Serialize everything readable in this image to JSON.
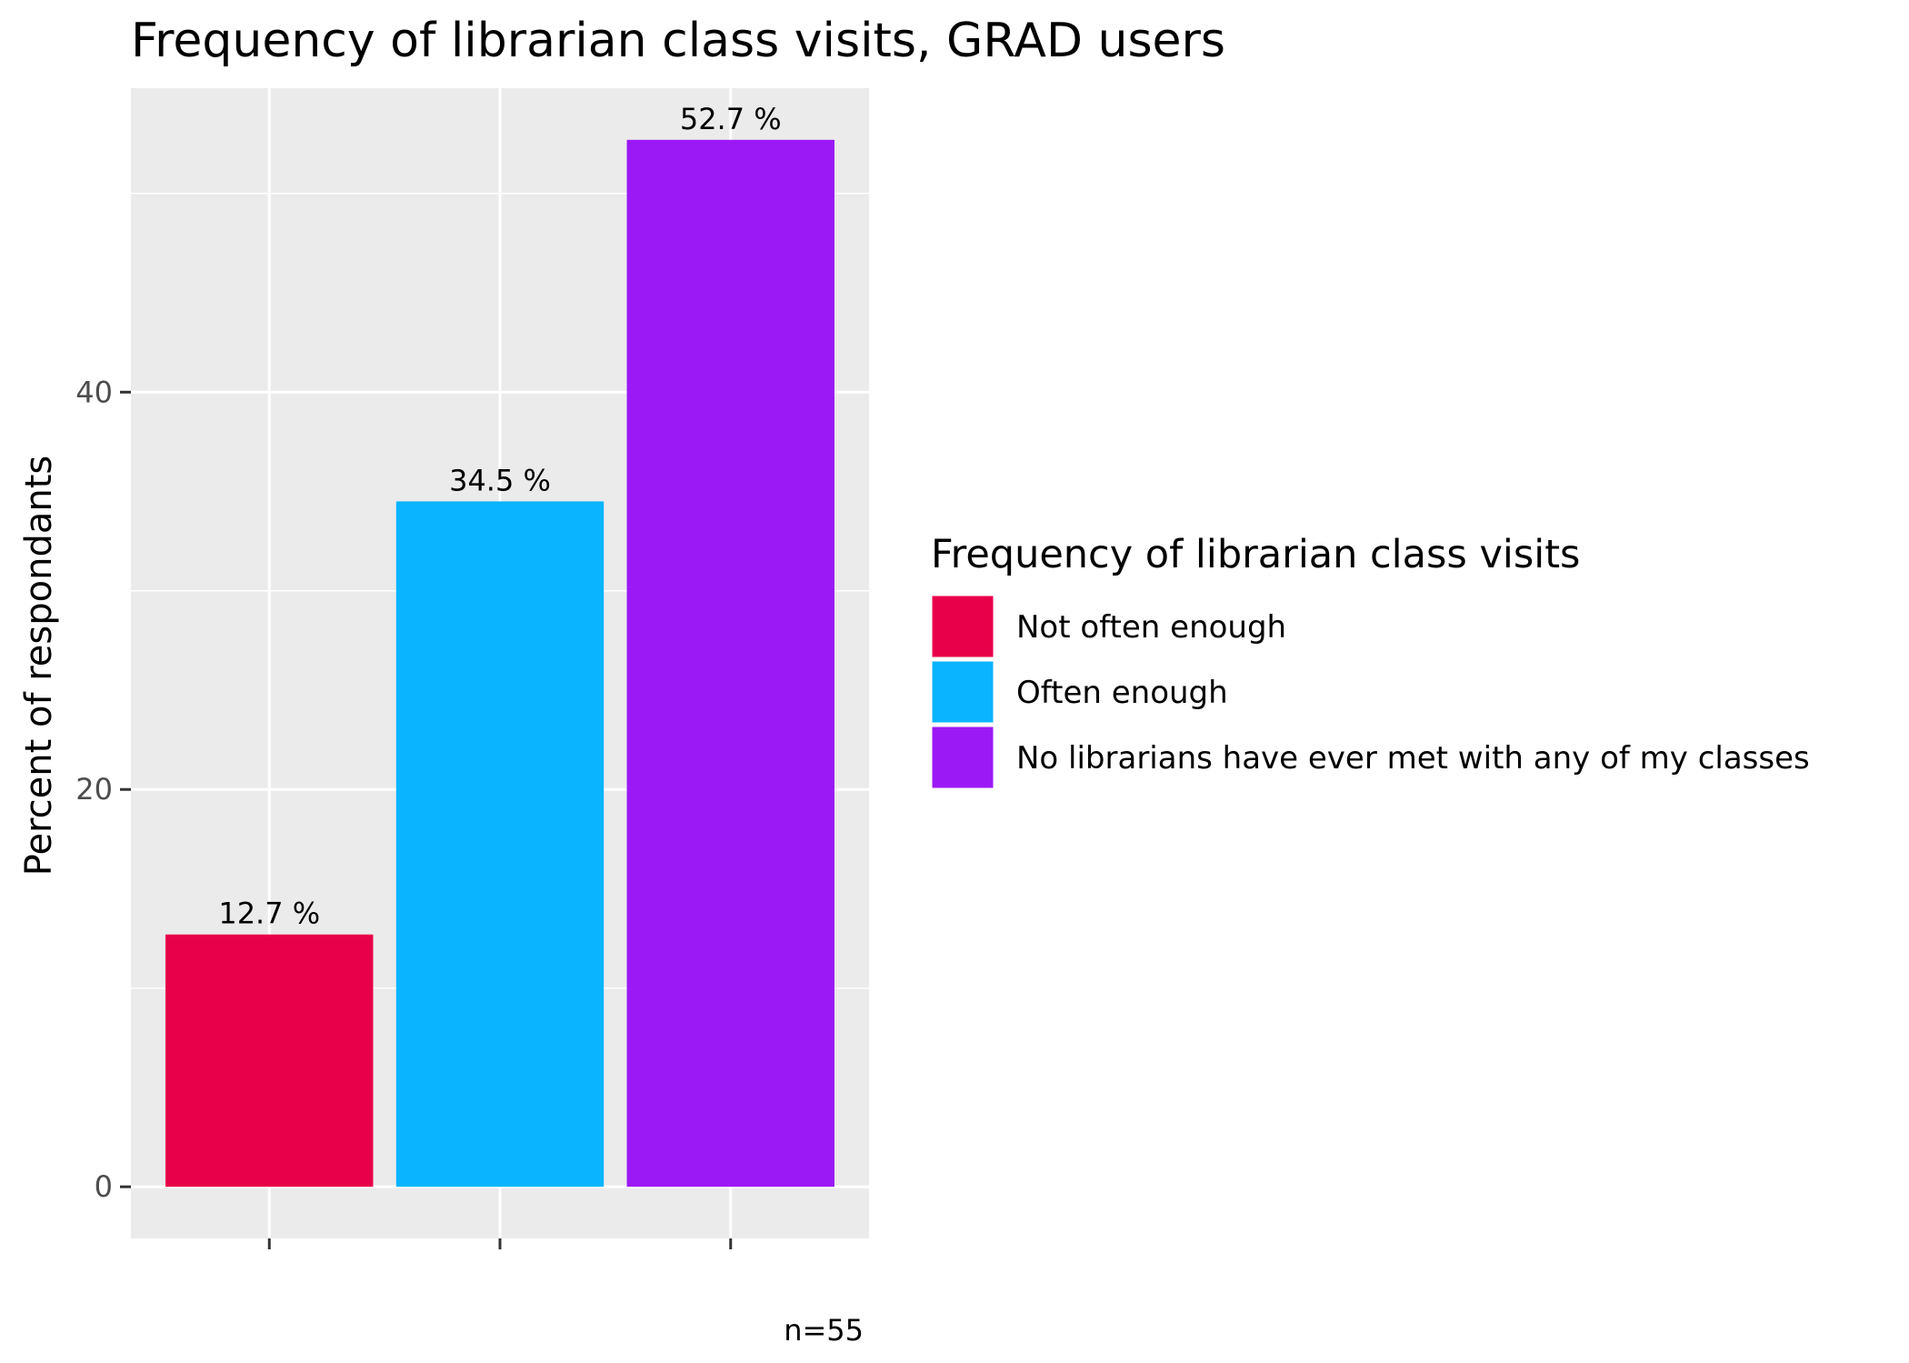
{
  "chart_data": {
    "type": "bar",
    "title": "Frequency of librarian class visits,  GRAD users",
    "xlabel": "",
    "ylabel": "Percent of respondants",
    "caption": "n=55",
    "categories": [
      "Not often enough",
      "Often enough",
      "No librarians have ever met with any of my classes"
    ],
    "values": [
      12.7,
      34.5,
      52.7
    ],
    "data_labels": [
      "12.7 %",
      "34.5 %",
      "52.7 %"
    ],
    "colors": [
      "#e8004a",
      "#0bb4ff",
      "#9b19f5"
    ],
    "ylim": [
      -2.6,
      55.3
    ],
    "y_ticks": [
      0,
      20,
      40
    ],
    "y_tick_labels": [
      "0",
      "20",
      "40"
    ],
    "grid": true,
    "panel_background": "#ebebeb",
    "grid_color": "#ffffff",
    "legend": {
      "title": "Frequency of librarian class visits",
      "position": "right",
      "entries": [
        "Not often enough",
        "Often enough",
        "No librarians have ever met with any of my classes"
      ]
    }
  }
}
